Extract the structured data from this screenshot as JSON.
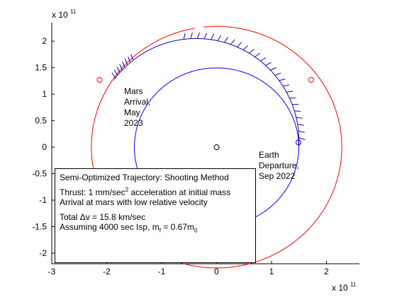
{
  "chart_data": {
    "type": "line",
    "title": "",
    "xlabel": "",
    "ylabel": "",
    "x_multiplier": "x 10",
    "x_multiplier_exp": "11",
    "y_multiplier": "x 10",
    "y_multiplier_exp": "11",
    "xlim": [
      -300000000000.0,
      260000000000.0
    ],
    "ylim": [
      -220000000000.0,
      235000000000.0
    ],
    "xticks": [
      -300000000000.0,
      -200000000000.0,
      -100000000000.0,
      0,
      100000000000.0,
      200000000000.0
    ],
    "xtick_labels": [
      "-3",
      "-2",
      "-1",
      "0",
      "1",
      "2"
    ],
    "yticks": [
      -200000000000.0,
      -150000000000.0,
      -100000000000.0,
      -50000000000.0,
      0,
      50000000000.0,
      100000000000.0,
      150000000000.0,
      200000000000.0
    ],
    "ytick_labels": [
      "-2",
      "-1.5",
      "-1",
      "-0.5",
      "0",
      "0.5",
      "1",
      "1.5",
      "2"
    ],
    "series": [
      {
        "role": "earth-orbit",
        "color": "#0000ff",
        "shape": "circle",
        "radius": 149600000000.0,
        "center": [
          0,
          0
        ]
      },
      {
        "role": "mars-orbit",
        "color": "#ff0000",
        "shape": "circle",
        "radius": 227900000000.0,
        "center": [
          0,
          0
        ],
        "gap_deg": [
          96,
          100
        ]
      },
      {
        "role": "transfer-trajectory",
        "color": "#1a00aa",
        "shape": "ellipse-arc",
        "center": [
          -37000000000.0,
          11000000000.0
        ],
        "a": 187000000000.0,
        "b": 194000000000.0,
        "start_deg": -3,
        "end_deg": 143
      }
    ],
    "markers": [
      {
        "role": "sun",
        "x": 0,
        "y": 0,
        "color": "#000000",
        "marker": "circle"
      },
      {
        "role": "earth-departure",
        "x": 149000000000.0,
        "y": 9000000000.0,
        "color": "#0000ff",
        "marker": "circle"
      },
      {
        "role": "mars-arrival",
        "x": -213000000000.0,
        "y": 127000000000.0,
        "color": "#ff0000",
        "marker": "circle"
      },
      {
        "role": "mars-at-departure",
        "x": 172000000000.0,
        "y": 127000000000.0,
        "color": "#ff0000",
        "marker": "circle"
      }
    ],
    "thrust_arcs": [
      {
        "color": "#1a00aa",
        "start_deg": 2,
        "end_deg": 97,
        "tick_count": 26
      },
      {
        "color": "#1a00aa",
        "start_deg": 128,
        "end_deg": 142,
        "tick_count": 8
      }
    ],
    "annotations": {
      "mars_arrival": [
        "Mars",
        "Arrival,",
        "May",
        "2023"
      ],
      "earth_departure": [
        "Earth",
        "Departure,",
        "Sep 2022"
      ]
    },
    "legend_box": {
      "line1": "Semi-Optimized Trajectory: Shooting Method",
      "thrust_prefix": "Thrust: 1 mm/sec",
      "thrust_sup": "2",
      "thrust_suffix": " acceleration at initial mass",
      "line3": "Arrival at mars with low relative velocity",
      "dv_prefix": "Total ",
      "dv_symbol": "Δv",
      "dv_suffix": " = 15.8 km/sec",
      "isp_prefix": "Assuming 4000 sec Isp, m",
      "isp_sub1": "f",
      "isp_mid": " = 0.67m",
      "isp_sub2": "0"
    }
  }
}
